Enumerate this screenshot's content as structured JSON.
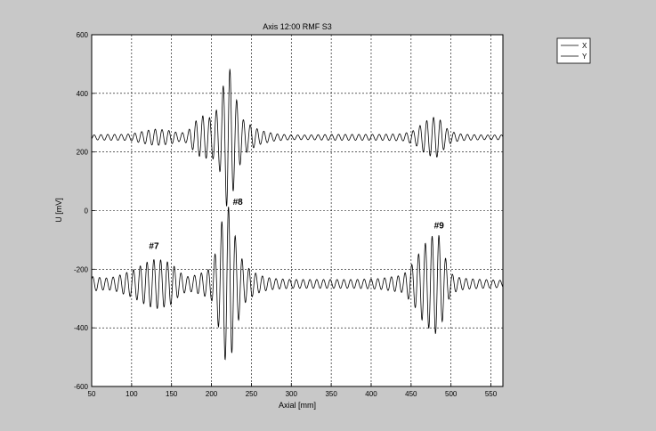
{
  "colors": {
    "figure_bg": "#c8c8c8",
    "axes_bg": "#ffffff",
    "line": "#000000",
    "grid": "#000000"
  },
  "chart_data": {
    "type": "line",
    "title": "Axis 12:00 RMF S3",
    "xlabel": "Axial [mm]",
    "ylabel": "U [mV]",
    "xlim": [
      50,
      565
    ],
    "ylim": [
      -600,
      600
    ],
    "xticks": [
      50,
      100,
      150,
      200,
      250,
      300,
      350,
      400,
      450,
      500,
      550
    ],
    "yticks": [
      -600,
      -400,
      -200,
      0,
      200,
      400,
      600
    ],
    "grid": true,
    "legend_position": "top-right",
    "series": [
      {
        "name": "X",
        "baseline": 250,
        "envelopes": [
          {
            "x": [
              50,
              60,
              70,
              80,
              90,
              100,
              110,
              120,
              130,
              140,
              150,
              160,
              170,
              180,
              190,
              200,
              210,
              215,
              220,
              225,
              230,
              240,
              250,
              260,
              270,
              280,
              300,
              320,
              350,
              380,
              410,
              440,
              455,
              465,
              475,
              480,
              485,
              490,
              495,
              500,
              510,
              520,
              540,
              565
            ],
            "amp": [
              8,
              9,
              10,
              10,
              10,
              12,
              18,
              24,
              28,
              26,
              22,
              14,
              20,
              55,
              75,
              65,
              110,
              180,
              250,
              220,
              140,
              60,
              40,
              25,
              18,
              12,
              8,
              8,
              10,
              10,
              10,
              12,
              25,
              50,
              65,
              70,
              65,
              45,
              30,
              20,
              12,
              10,
              8,
              8
            ]
          }
        ]
      },
      {
        "name": "Y",
        "baseline": -250,
        "envelopes": [
          {
            "x": [
              50,
              60,
              70,
              80,
              90,
              100,
              110,
              120,
              130,
              140,
              150,
              160,
              170,
              180,
              190,
              200,
              210,
              215,
              220,
              225,
              230,
              240,
              250,
              260,
              270,
              280,
              300,
              320,
              350,
              380,
              410,
              440,
              455,
              465,
              475,
              480,
              485,
              490,
              495,
              500,
              510,
              520,
              540,
              565
            ],
            "amp": [
              25,
              22,
              20,
              25,
              35,
              45,
              60,
              75,
              85,
              80,
              70,
              40,
              25,
              30,
              40,
              55,
              160,
              250,
              270,
              245,
              160,
              70,
              45,
              30,
              22,
              18,
              15,
              15,
              15,
              15,
              18,
              30,
              80,
              130,
              160,
              170,
              165,
              120,
              70,
              35,
              22,
              18,
              15,
              12
            ]
          }
        ]
      }
    ],
    "annotations": [
      {
        "text": "#7",
        "x": 128,
        "y": -130
      },
      {
        "text": "#8",
        "x": 233,
        "y": 20
      },
      {
        "text": "#9",
        "x": 485,
        "y": -60
      }
    ]
  }
}
